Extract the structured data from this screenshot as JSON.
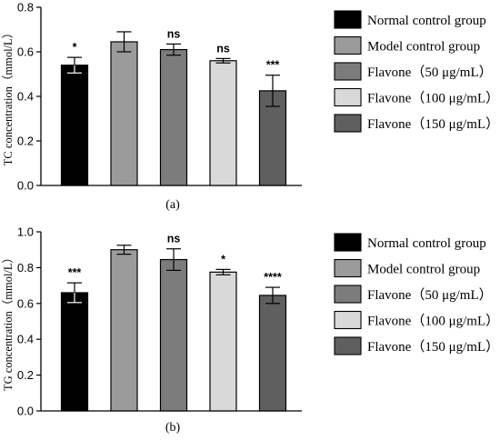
{
  "chart_data": [
    {
      "type": "bar",
      "panel_label": "(a)",
      "ylabel": "TC concentration（mmol/L）",
      "ylim": [
        0,
        0.8
      ],
      "yticks": [
        "0.0",
        "0.2",
        "0.4",
        "0.6",
        "0.8"
      ],
      "categories": [
        "Normal control group",
        "Model control group",
        "Flavone（50 μg/mL）",
        "Flavone（100 μg/mL）",
        "Flavone（150 μg/mL）"
      ],
      "values": [
        0.54,
        0.645,
        0.61,
        0.56,
        0.425
      ],
      "errors": [
        0.035,
        0.045,
        0.025,
        0.01,
        0.07
      ],
      "significance": [
        "*",
        "",
        "ns",
        "ns",
        "***"
      ],
      "colors": [
        "#000000",
        "#9b9b9b",
        "#7c7c7c",
        "#d9d9d9",
        "#5f5f5f"
      ],
      "legend": "right"
    },
    {
      "type": "bar",
      "panel_label": "(b)",
      "ylabel": "TG concentration（mmol/L）",
      "ylim": [
        0,
        1.0
      ],
      "yticks": [
        "0.0",
        "0.2",
        "0.4",
        "0.6",
        "0.8",
        "1.0"
      ],
      "categories": [
        "Normal control group",
        "Model control group",
        "Flavone（50 μg/mL）",
        "Flavone（100 μg/mL）",
        "Flavone（150 μg/mL）"
      ],
      "values": [
        0.66,
        0.9,
        0.845,
        0.775,
        0.645
      ],
      "errors": [
        0.055,
        0.025,
        0.06,
        0.015,
        0.045
      ],
      "significance": [
        "***",
        "",
        "ns",
        "*",
        "****"
      ],
      "colors": [
        "#000000",
        "#9b9b9b",
        "#7c7c7c",
        "#d9d9d9",
        "#5f5f5f"
      ],
      "legend": "right"
    }
  ]
}
